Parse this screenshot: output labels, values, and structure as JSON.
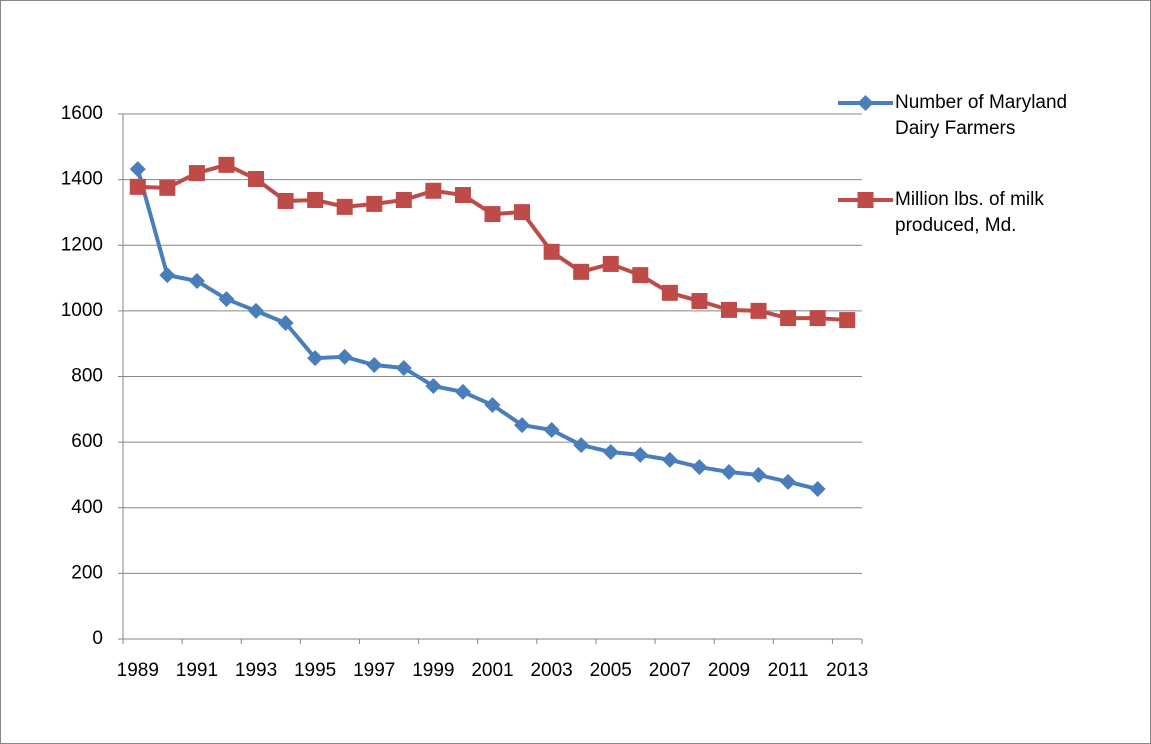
{
  "chart_data": {
    "type": "line",
    "categories": [
      "1989",
      null,
      "1991",
      null,
      "1993",
      null,
      "1995",
      null,
      "1997",
      null,
      "1999",
      null,
      "2001",
      null,
      "2003",
      null,
      "2005",
      null,
      "2007",
      null,
      "2009",
      null,
      "2011",
      null,
      "2013"
    ],
    "series": [
      {
        "name": "Number of Maryland Dairy Farmers",
        "color": "#4a7ebb",
        "marker": "diamond",
        "values": [
          1432,
          1109,
          1091,
          1036,
          1000,
          963,
          856,
          860,
          835,
          826,
          771,
          753,
          713,
          652,
          637,
          591,
          570,
          561,
          546,
          524,
          509,
          500,
          479,
          457,
          null
        ]
      },
      {
        "name": "Million lbs. of milk produced, Md.",
        "color": "#be4b48",
        "marker": "square",
        "values": [
          1378,
          1375,
          1420,
          1445,
          1402,
          1335,
          1338,
          1317,
          1326,
          1338,
          1366,
          1353,
          1295,
          1301,
          1180,
          1119,
          1143,
          1109,
          1055,
          1030,
          1003,
          1000,
          978,
          978,
          972
        ]
      }
    ],
    "ylim": [
      0,
      1600
    ],
    "yticks": [
      0,
      200,
      400,
      600,
      800,
      1000,
      1200,
      1400,
      1600
    ],
    "grid": true,
    "legend": "right"
  }
}
